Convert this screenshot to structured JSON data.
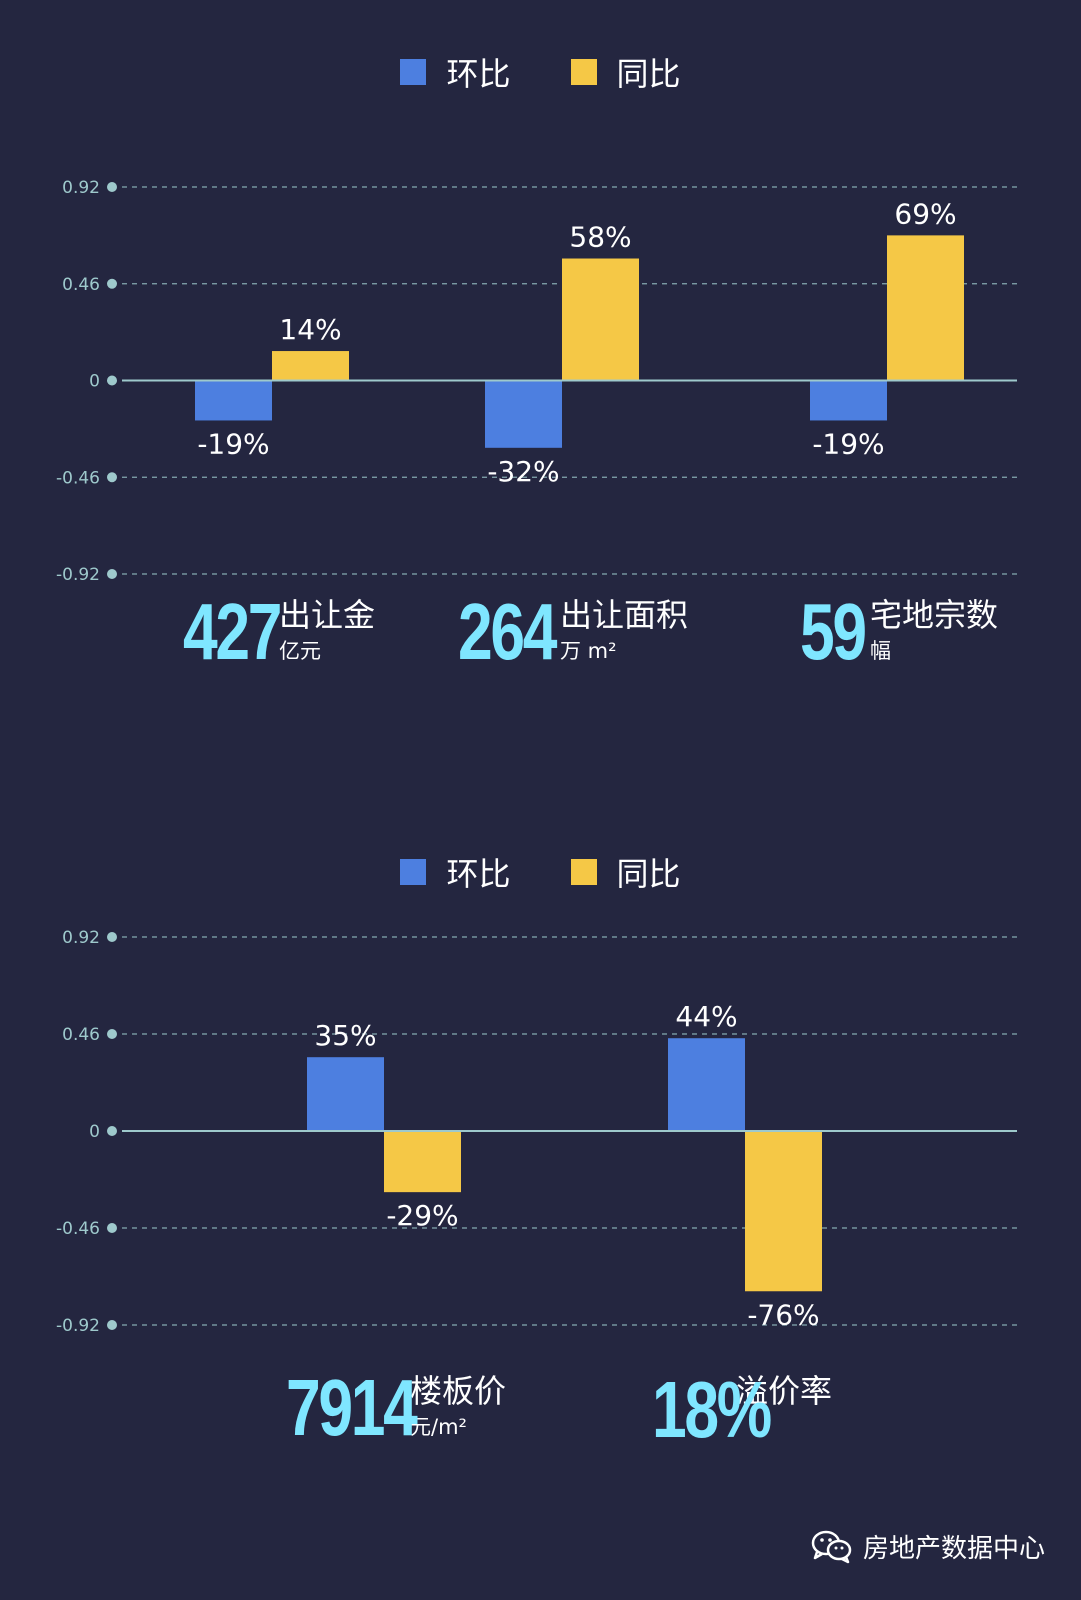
{
  "colors": {
    "mom": "#4d7fe0",
    "yoy": "#f5c846",
    "accent": "#7fe6ff",
    "axis": "#9ec9cc",
    "background": "#242640"
  },
  "legend": {
    "mom_label": "环比",
    "yoy_label": "同比"
  },
  "chart_data": [
    {
      "type": "bar",
      "categories": [
        "出让金",
        "出让面积",
        "宅地宗数"
      ],
      "series": [
        {
          "name": "环比",
          "values": [
            -0.19,
            -0.32,
            -0.19
          ],
          "labels": [
            "-19%",
            "-32%",
            "-19%"
          ]
        },
        {
          "name": "同比",
          "values": [
            0.14,
            0.58,
            0.69
          ],
          "labels": [
            "14%",
            "58%",
            "69%"
          ]
        }
      ],
      "ylim": [
        -0.92,
        0.92
      ],
      "yticks": [
        0.92,
        0.46,
        0,
        -0.46,
        -0.92
      ],
      "ytick_labels": [
        "0.92",
        "0.46",
        "0",
        "-0.46",
        "-0.92"
      ],
      "grid": true,
      "legend_position": "top-center"
    },
    {
      "type": "bar",
      "categories": [
        "楼板价",
        "溢价率"
      ],
      "series": [
        {
          "name": "环比",
          "values": [
            0.35,
            0.44
          ],
          "labels": [
            "35%",
            "44%"
          ]
        },
        {
          "name": "同比",
          "values": [
            -0.29,
            -0.76
          ],
          "labels": [
            "-29%",
            "-76%"
          ]
        }
      ],
      "ylim": [
        -0.92,
        0.92
      ],
      "yticks": [
        0.92,
        0.46,
        0,
        -0.46,
        -0.92
      ],
      "ytick_labels": [
        "0.92",
        "0.46",
        "0",
        "-0.46",
        "-0.92"
      ],
      "grid": true,
      "legend_position": "top-center"
    }
  ],
  "stats1": [
    {
      "value": "427",
      "label": "出让金",
      "unit": "亿元"
    },
    {
      "value": "264",
      "label": "出让面积",
      "unit": "万 m²"
    },
    {
      "value": "59",
      "label": "宅地宗数",
      "unit": "幅"
    }
  ],
  "stats2": [
    {
      "value": "7914",
      "label": "楼板价",
      "unit": "元/m²"
    },
    {
      "value": "18%",
      "label": "溢价率",
      "unit": ""
    }
  ],
  "footer": {
    "text": "房地产数据中心",
    "icon": "wechat-icon"
  }
}
